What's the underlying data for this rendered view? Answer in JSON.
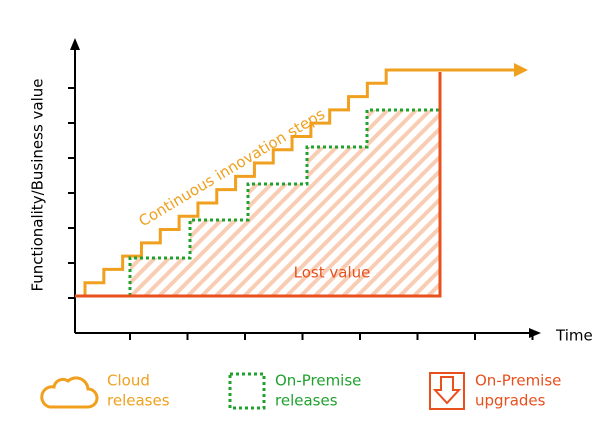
{
  "axes": {
    "y_label": "Functionality/Business  value",
    "x_label": "Time"
  },
  "annotations": {
    "steps": "Continuous innovation steps",
    "lost": "Lost value"
  },
  "legend": [
    {
      "lines": [
        "Cloud",
        "releases"
      ]
    },
    {
      "lines": [
        "On-Premise",
        "releases"
      ]
    },
    {
      "lines": [
        "On-Premise",
        "upgrades"
      ]
    }
  ]
}
